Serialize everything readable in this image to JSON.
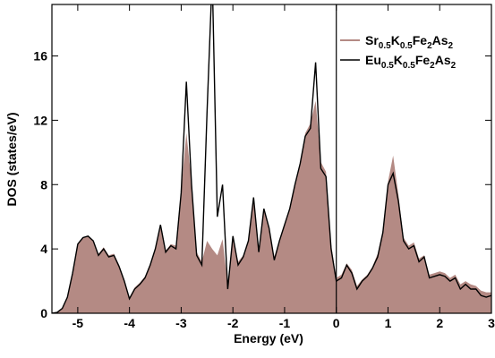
{
  "chart_data": {
    "type": "area-line",
    "xlabel": "Energy (eV)",
    "ylabel": "DOS (states/eV)",
    "x": [
      -5.5,
      -5.4,
      -5.3,
      -5.2,
      -5.1,
      -5.0,
      -4.9,
      -4.8,
      -4.7,
      -4.6,
      -4.5,
      -4.4,
      -4.3,
      -4.2,
      -4.1,
      -4.0,
      -3.9,
      -3.8,
      -3.7,
      -3.6,
      -3.5,
      -3.4,
      -3.3,
      -3.2,
      -3.1,
      -3.0,
      -2.9,
      -2.8,
      -2.7,
      -2.6,
      -2.5,
      -2.4,
      -2.3,
      -2.2,
      -2.1,
      -2.0,
      -1.9,
      -1.8,
      -1.7,
      -1.6,
      -1.5,
      -1.4,
      -1.3,
      -1.2,
      -1.1,
      -1.0,
      -0.9,
      -0.8,
      -0.7,
      -0.6,
      -0.5,
      -0.4,
      -0.3,
      -0.2,
      -0.1,
      0.0,
      0.1,
      0.2,
      0.3,
      0.4,
      0.5,
      0.6,
      0.7,
      0.8,
      0.9,
      1.0,
      1.1,
      1.2,
      1.3,
      1.4,
      1.5,
      1.6,
      1.7,
      1.8,
      1.9,
      2.0,
      2.1,
      2.2,
      2.3,
      2.4,
      2.5,
      2.6,
      2.7,
      2.8,
      2.9,
      3.0
    ],
    "series": [
      {
        "name": "Sr0.5K0.5Fe2As2",
        "color": "#b48a84",
        "style": "area",
        "values": [
          0,
          0.05,
          0.3,
          1.0,
          2.5,
          4.3,
          4.7,
          4.8,
          4.5,
          3.7,
          4.1,
          3.6,
          3.7,
          3.0,
          2.1,
          1.0,
          1.6,
          1.9,
          2.3,
          3.1,
          4.1,
          5.3,
          3.9,
          4.3,
          4.2,
          7.6,
          11.2,
          8.2,
          3.8,
          3.2,
          4.5,
          4.0,
          3.6,
          4.6,
          1.8,
          4.8,
          3.2,
          3.6,
          4.6,
          7.0,
          4.0,
          6.4,
          5.4,
          3.5,
          4.6,
          5.6,
          6.6,
          8.1,
          9.4,
          11.2,
          11.8,
          13.2,
          9.4,
          8.8,
          4.3,
          2.2,
          2.4,
          3.1,
          2.7,
          1.7,
          2.1,
          2.4,
          2.9,
          3.7,
          5.2,
          8.2,
          9.8,
          7.4,
          4.7,
          4.2,
          4.4,
          3.4,
          3.6,
          2.4,
          2.5,
          2.6,
          2.5,
          2.2,
          2.4,
          1.8,
          2.0,
          1.8,
          1.7,
          1.4,
          1.3,
          1.3
        ]
      },
      {
        "name": "Eu0.5K0.5Fe2As2",
        "color": "#000000",
        "style": "line",
        "values": [
          0,
          0.05,
          0.3,
          1.0,
          2.5,
          4.3,
          4.7,
          4.8,
          4.5,
          3.6,
          4.0,
          3.5,
          3.6,
          2.9,
          2.0,
          0.9,
          1.5,
          1.8,
          2.2,
          3.0,
          4.0,
          5.5,
          3.8,
          4.2,
          4.0,
          7.5,
          14.4,
          8.0,
          3.6,
          3.0,
          12.5,
          21,
          6.0,
          8.0,
          1.5,
          4.8,
          3.0,
          3.5,
          4.5,
          7.2,
          3.8,
          6.5,
          5.3,
          3.3,
          4.5,
          5.5,
          6.5,
          8.0,
          9.3,
          11.0,
          11.5,
          15.6,
          9.0,
          8.5,
          4.0,
          2.0,
          2.2,
          3.0,
          2.5,
          1.5,
          2.0,
          2.3,
          2.8,
          3.5,
          5.0,
          8.0,
          8.7,
          7.0,
          4.5,
          4.0,
          4.2,
          3.2,
          3.5,
          2.2,
          2.3,
          2.4,
          2.3,
          2.0,
          2.2,
          1.5,
          1.8,
          1.5,
          1.5,
          1.1,
          1.0,
          1.1
        ]
      }
    ],
    "xlim": [
      -5.5,
      3
    ],
    "ylim": [
      0,
      19.2
    ],
    "xticks": [
      -5,
      -4,
      -3,
      -2,
      -1,
      0,
      1,
      2,
      3
    ],
    "yticks": [
      0,
      4,
      8,
      12,
      16
    ],
    "vline": 0,
    "legend": "upper right"
  }
}
